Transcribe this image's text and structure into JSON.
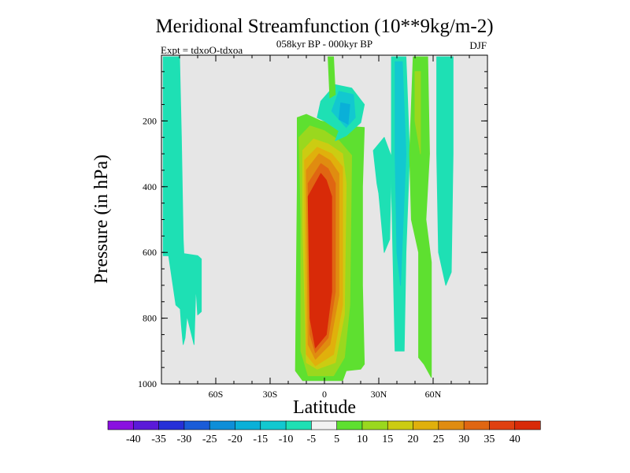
{
  "chart_data": {
    "type": "heatmap",
    "title": "Meridional Streamfunction (10**9kg/m-2)",
    "subtitle": "058kyr BP - 000kyr BP",
    "left_label": "Expt = tdxoO-tdxoa",
    "right_label": "DJF",
    "xlabel": "Latitude",
    "ylabel": "Pressure (in hPa)",
    "xlim": [
      -90,
      90
    ],
    "ylim": [
      1000,
      0
    ],
    "x_ticks": [
      {
        "value": -60,
        "label": "60S"
      },
      {
        "value": -30,
        "label": "30S"
      },
      {
        "value": 0,
        "label": "0"
      },
      {
        "value": 30,
        "label": "30N"
      },
      {
        "value": 60,
        "label": "60N"
      }
    ],
    "y_ticks": [
      {
        "value": 200,
        "label": "200"
      },
      {
        "value": 400,
        "label": "400"
      },
      {
        "value": 600,
        "label": "600"
      },
      {
        "value": 800,
        "label": "800"
      },
      {
        "value": 1000,
        "label": "1000"
      }
    ],
    "background_color": "#e6e6e6",
    "colorbar": {
      "labels": [
        "-40",
        "-35",
        "-30",
        "-25",
        "-20",
        "-15",
        "-10",
        "-5",
        "5",
        "10",
        "15",
        "20",
        "25",
        "30",
        "35",
        "40"
      ],
      "colors": [
        "#8a10e0",
        "#5a1ad8",
        "#2630d8",
        "#1a5cd8",
        "#0e8ed8",
        "#0ab0d8",
        "#12c8d0",
        "#1ee0b4",
        "#f2f2f2",
        "#5ee030",
        "#9ad81e",
        "#cccc12",
        "#e0b00c",
        "#e08c10",
        "#e06612",
        "#e04010",
        "#d82a08"
      ]
    },
    "regions": [
      {
        "name": "sh-polar-negative",
        "color": "#1ee0b4",
        "points": [
          [
            -89,
            5
          ],
          [
            -80,
            5
          ],
          [
            -79,
            250
          ],
          [
            -78,
            560
          ],
          [
            -76,
            800
          ],
          [
            -77,
            860
          ],
          [
            -78,
            880
          ],
          [
            -79,
            820
          ],
          [
            -81,
            660
          ],
          [
            -82,
            600
          ],
          [
            -70,
            610
          ],
          [
            -68,
            620
          ],
          [
            -68,
            780
          ],
          [
            -70,
            790
          ],
          [
            -71,
            700
          ],
          [
            -72,
            880
          ],
          [
            -76,
            790
          ],
          [
            -82,
            760
          ],
          [
            -86,
            610
          ],
          [
            -89,
            610
          ]
        ]
      },
      {
        "name": "main-cell-5",
        "color": "#5ee030",
        "points": [
          [
            -15,
            190
          ],
          [
            -10,
            180
          ],
          [
            -2,
            200
          ],
          [
            10,
            215
          ],
          [
            22,
            220
          ],
          [
            21,
            400
          ],
          [
            21,
            700
          ],
          [
            22,
            940
          ],
          [
            20,
            955
          ],
          [
            12,
            960
          ],
          [
            10,
            990
          ],
          [
            -12,
            990
          ],
          [
            -16,
            960
          ],
          [
            -15,
            400
          ]
        ]
      },
      {
        "name": "main-cell-10",
        "color": "#9ad81e",
        "points": [
          [
            -14,
            250
          ],
          [
            -8,
            215
          ],
          [
            0,
            230
          ],
          [
            8,
            260
          ],
          [
            15,
            305
          ],
          [
            14,
            760
          ],
          [
            11,
            920
          ],
          [
            5,
            975
          ],
          [
            -9,
            975
          ],
          [
            -13,
            900
          ],
          [
            -13,
            500
          ]
        ]
      },
      {
        "name": "main-cell-15",
        "color": "#cccc12",
        "points": [
          [
            -12,
            290
          ],
          [
            -6,
            255
          ],
          [
            2,
            270
          ],
          [
            10,
            300
          ],
          [
            12,
            390
          ],
          [
            11,
            790
          ],
          [
            6,
            935
          ],
          [
            -4,
            955
          ],
          [
            -10,
            935
          ],
          [
            -12,
            520
          ]
        ]
      },
      {
        "name": "main-cell-20",
        "color": "#e0b00c",
        "points": [
          [
            -11,
            320
          ],
          [
            -4,
            280
          ],
          [
            4,
            300
          ],
          [
            10,
            340
          ],
          [
            10,
            760
          ],
          [
            5,
            910
          ],
          [
            -5,
            945
          ],
          [
            -10,
            910
          ]
        ]
      },
      {
        "name": "main-cell-25",
        "color": "#e08c10",
        "points": [
          [
            -10,
            350
          ],
          [
            -3,
            300
          ],
          [
            3,
            320
          ],
          [
            8,
            360
          ],
          [
            8,
            730
          ],
          [
            3,
            880
          ],
          [
            -5,
            925
          ],
          [
            -9,
            880
          ]
        ]
      },
      {
        "name": "main-cell-30",
        "color": "#e06612",
        "points": [
          [
            -9,
            390
          ],
          [
            -2,
            330
          ],
          [
            2,
            345
          ],
          [
            6,
            390
          ],
          [
            6,
            720
          ],
          [
            2,
            860
          ],
          [
            -5,
            905
          ],
          [
            -8,
            850
          ]
        ]
      },
      {
        "name": "main-cell-40",
        "color": "#d82a08",
        "points": [
          [
            -9,
            430
          ],
          [
            -2,
            360
          ],
          [
            1,
            380
          ],
          [
            4,
            430
          ],
          [
            4,
            720
          ],
          [
            1,
            850
          ],
          [
            -5,
            890
          ],
          [
            -8,
            800
          ]
        ]
      },
      {
        "name": "upper-ne-negative-outer",
        "color": "#1ee0b4",
        "points": [
          [
            -4,
            190
          ],
          [
            -2,
            140
          ],
          [
            6,
            90
          ],
          [
            15,
            100
          ],
          [
            22,
            150
          ],
          [
            20,
            205
          ],
          [
            12,
            245
          ],
          [
            6,
            260
          ],
          [
            8,
            230
          ],
          [
            0,
            200
          ]
        ]
      },
      {
        "name": "upper-ne-negative-mid",
        "color": "#12c8d0",
        "points": [
          [
            4,
            170
          ],
          [
            8,
            110
          ],
          [
            16,
            120
          ],
          [
            17,
            190
          ],
          [
            12,
            220
          ]
        ]
      },
      {
        "name": "upper-ne-negative-core",
        "color": "#0ab0d8",
        "points": [
          [
            8,
            195
          ],
          [
            9,
            145
          ],
          [
            14,
            150
          ],
          [
            13,
            210
          ]
        ]
      },
      {
        "name": "equatorial-upper-band",
        "color": "#5ee030",
        "points": [
          [
            2,
            5
          ],
          [
            5,
            5
          ],
          [
            6,
            120
          ],
          [
            3,
            130
          ]
        ]
      },
      {
        "name": "north-negative-strip",
        "color": "#1ee0b4",
        "points": [
          [
            27,
            290
          ],
          [
            33,
            250
          ],
          [
            37,
            310
          ],
          [
            36,
            560
          ],
          [
            33,
            600
          ],
          [
            30,
            420
          ],
          [
            29,
            390
          ]
        ]
      },
      {
        "name": "north-wide-negative",
        "color": "#1ee0b4",
        "points": [
          [
            37,
            5
          ],
          [
            45,
            5
          ],
          [
            47,
            300
          ],
          [
            45,
            600
          ],
          [
            44,
            900
          ],
          [
            39,
            900
          ],
          [
            37,
            400
          ]
        ]
      },
      {
        "name": "north-wide-negative-core",
        "color": "#12c8d0",
        "points": [
          [
            39,
            20
          ],
          [
            43,
            20
          ],
          [
            45,
            300
          ],
          [
            42,
            700
          ],
          [
            40,
            600
          ],
          [
            39,
            300
          ]
        ]
      },
      {
        "name": "north-positive-band",
        "color": "#5ee030",
        "points": [
          [
            49,
            5
          ],
          [
            57,
            5
          ],
          [
            58,
            300
          ],
          [
            56,
            500
          ],
          [
            59,
            630
          ],
          [
            59,
            980
          ],
          [
            55,
            940
          ],
          [
            52,
            920
          ],
          [
            52,
            600
          ],
          [
            48,
            500
          ],
          [
            47,
            300
          ]
        ]
      },
      {
        "name": "north-positive-core",
        "color": "#9ad81e",
        "points": [
          [
            50,
            50
          ],
          [
            53,
            50
          ],
          [
            53,
            300
          ],
          [
            50,
            200
          ]
        ]
      },
      {
        "name": "far-north-negative",
        "color": "#1ee0b4",
        "points": [
          [
            62,
            5
          ],
          [
            71,
            5
          ],
          [
            71,
            300
          ],
          [
            70,
            660
          ],
          [
            67,
            700
          ],
          [
            63,
            600
          ],
          [
            62,
            300
          ]
        ]
      }
    ]
  }
}
